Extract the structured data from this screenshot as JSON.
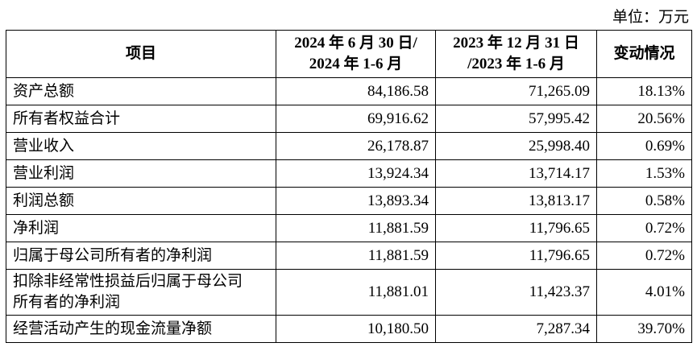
{
  "unit": "单位：万元",
  "table": {
    "header": [
      "项目",
      [
        "2024 年 6 月 30 日/",
        "2024 年 1-6 月"
      ],
      [
        "2023 年 12 月 31 日",
        "/2023 年 1-6 月"
      ],
      "变动情况"
    ],
    "rows": [
      [
        "资产总额",
        "84,186.58",
        "71,265.09",
        "18.13%"
      ],
      [
        "所有者权益合计",
        "69,916.62",
        "57,995.42",
        "20.56%"
      ],
      [
        "营业收入",
        "26,178.87",
        "25,998.40",
        "0.69%"
      ],
      [
        "营业利润",
        "13,924.34",
        "13,714.17",
        "1.53%"
      ],
      [
        "利润总额",
        "13,893.34",
        "13,813.17",
        "0.58%"
      ],
      [
        "净利润",
        "11,881.59",
        "11,796.65",
        "0.72%"
      ],
      [
        "归属于母公司所有者的净利润",
        "11,881.59",
        "11,796.65",
        "0.72%"
      ],
      [
        [
          "扣除非经常性损益后归属于母公司",
          "所有者的净利润"
        ],
        "11,881.01",
        "11,423.37",
        "4.01%"
      ],
      [
        "经营活动产生的现金流量净额",
        "10,180.50",
        "7,287.34",
        "39.70%"
      ]
    ]
  }
}
